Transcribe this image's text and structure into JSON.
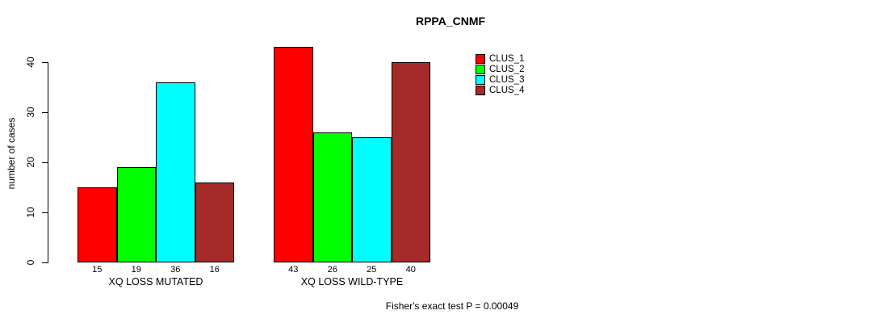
{
  "chart_data": {
    "type": "bar",
    "title": "RPPA_CNMF",
    "ylabel": "number of cases",
    "xlabel": "",
    "ylim": [
      0,
      43
    ],
    "yticks": [
      0,
      10,
      20,
      30,
      40
    ],
    "grid": false,
    "legend_position": "right-of-plot-top",
    "categories": [
      "XQ LOSS MUTATED",
      "XQ LOSS WILD-TYPE"
    ],
    "series": [
      {
        "name": "CLUS_1",
        "color": "#FF0000",
        "values": [
          15,
          43
        ]
      },
      {
        "name": "CLUS_2",
        "color": "#00FF00",
        "values": [
          19,
          26
        ]
      },
      {
        "name": "CLUS_3",
        "color": "#00FFFF",
        "values": [
          36,
          25
        ]
      },
      {
        "name": "CLUS_4",
        "color": "#A52A2A",
        "values": [
          16,
          40
        ]
      }
    ],
    "bar_value_labels_shown": true,
    "annotation": "Fisher's exact test P = 0.00049"
  }
}
